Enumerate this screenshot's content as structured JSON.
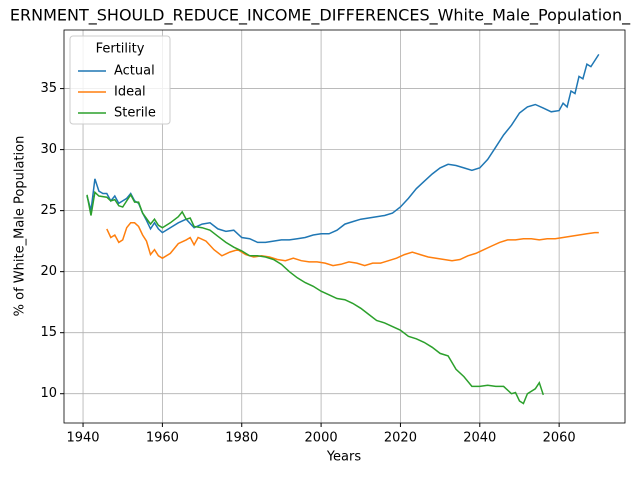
{
  "chart_data": {
    "type": "line",
    "title": "ERNMENT_SHOULD_REDUCE_INCOME_DIFFERENCES_White_Male_Population_",
    "xlabel": "Years",
    "ylabel": "% of White_Male Population",
    "xlim": [
      1935.2,
      2076.6
    ],
    "ylim": [
      7.6,
      39.8
    ],
    "xticks": [
      1940,
      1960,
      1980,
      2000,
      2020,
      2040,
      2060
    ],
    "yticks": [
      10,
      15,
      20,
      25,
      30,
      35
    ],
    "grid": true,
    "legend": "upper left",
    "legend_title": "Fertility",
    "series": [
      {
        "name": "Actual",
        "color": "#1f77b4",
        "x": [
          1941,
          1942,
          1943,
          1944,
          1945,
          1946,
          1947,
          1948,
          1949,
          1950,
          1951,
          1952,
          1953,
          1954,
          1955,
          1956,
          1957,
          1958,
          1959,
          1960,
          1962,
          1964,
          1966,
          1968,
          1970,
          1972,
          1974,
          1976,
          1978,
          1980,
          1982,
          1984,
          1986,
          1988,
          1990,
          1992,
          1994,
          1996,
          1998,
          2000,
          2002,
          2004,
          2006,
          2008,
          2010,
          2012,
          2014,
          2016,
          2018,
          2020,
          2022,
          2024,
          2026,
          2028,
          2030,
          2032,
          2034,
          2036,
          2038,
          2040,
          2042,
          2044,
          2046,
          2048,
          2050,
          2052,
          2054,
          2056,
          2058,
          2060,
          2061,
          2062,
          2063,
          2064,
          2065,
          2066,
          2067,
          2068,
          2070
        ],
        "values": [
          26.2,
          25.0,
          27.6,
          26.6,
          26.4,
          26.4,
          25.8,
          26.2,
          25.6,
          25.8,
          26.0,
          26.4,
          25.8,
          25.6,
          24.8,
          24.2,
          23.5,
          24.0,
          23.5,
          23.2,
          23.6,
          24.0,
          24.3,
          23.6,
          23.9,
          24.0,
          23.5,
          23.3,
          23.4,
          22.8,
          22.7,
          22.4,
          22.4,
          22.5,
          22.6,
          22.6,
          22.7,
          22.8,
          23.0,
          23.1,
          23.1,
          23.4,
          23.9,
          24.1,
          24.3,
          24.4,
          24.5,
          24.6,
          24.8,
          25.3,
          26.0,
          26.8,
          27.4,
          28.0,
          28.5,
          28.8,
          28.7,
          28.5,
          28.3,
          28.5,
          29.2,
          30.2,
          31.2,
          32.0,
          33.0,
          33.5,
          33.7,
          33.4,
          33.1,
          33.2,
          33.8,
          33.5,
          34.8,
          34.6,
          36.0,
          35.8,
          37.0,
          36.8,
          37.8
        ]
      },
      {
        "name": "Ideal",
        "color": "#ff7f0e",
        "x": [
          1946,
          1947,
          1948,
          1949,
          1950,
          1951,
          1952,
          1953,
          1954,
          1955,
          1956,
          1957,
          1958,
          1959,
          1960,
          1962,
          1964,
          1966,
          1967,
          1968,
          1969,
          1971,
          1973,
          1975,
          1977,
          1979,
          1981,
          1983,
          1985,
          1987,
          1989,
          1991,
          1993,
          1995,
          1997,
          1999,
          2001,
          2003,
          2005,
          2007,
          2009,
          2011,
          2013,
          2015,
          2017,
          2019,
          2021,
          2023,
          2025,
          2027,
          2029,
          2031,
          2033,
          2035,
          2037,
          2039,
          2041,
          2043,
          2045,
          2047,
          2049,
          2051,
          2053,
          2055,
          2057,
          2059,
          2061,
          2063,
          2065,
          2067,
          2069,
          2070
        ],
        "values": [
          23.5,
          22.8,
          23.0,
          22.4,
          22.6,
          23.6,
          24.0,
          24.0,
          23.7,
          23.0,
          22.5,
          21.4,
          21.8,
          21.3,
          21.1,
          21.5,
          22.3,
          22.6,
          22.8,
          22.2,
          22.8,
          22.5,
          21.8,
          21.3,
          21.6,
          21.8,
          21.4,
          21.2,
          21.3,
          21.2,
          21.0,
          20.9,
          21.1,
          20.9,
          20.8,
          20.8,
          20.7,
          20.5,
          20.6,
          20.8,
          20.7,
          20.5,
          20.7,
          20.7,
          20.9,
          21.1,
          21.4,
          21.6,
          21.4,
          21.2,
          21.1,
          21.0,
          20.9,
          21.0,
          21.3,
          21.5,
          21.8,
          22.1,
          22.4,
          22.6,
          22.6,
          22.7,
          22.7,
          22.6,
          22.7,
          22.7,
          22.8,
          22.9,
          23.0,
          23.1,
          23.2,
          23.2
        ]
      },
      {
        "name": "Sterile",
        "color": "#2ca02c",
        "x": [
          1941,
          1942,
          1943,
          1944,
          1946,
          1947,
          1948,
          1949,
          1950,
          1952,
          1953,
          1954,
          1955,
          1957,
          1958,
          1959,
          1960,
          1962,
          1964,
          1965,
          1966,
          1967,
          1968,
          1970,
          1972,
          1974,
          1976,
          1978,
          1980,
          1982,
          1984,
          1986,
          1988,
          1990,
          1992,
          1994,
          1996,
          1998,
          2000,
          2002,
          2004,
          2006,
          2008,
          2010,
          2012,
          2014,
          2016,
          2018,
          2020,
          2022,
          2024,
          2026,
          2028,
          2030,
          2032,
          2034,
          2036,
          2038,
          2040,
          2042,
          2044,
          2046,
          2048,
          2049,
          2050,
          2051,
          2052,
          2054,
          2055,
          2056
        ],
        "values": [
          26.3,
          24.6,
          26.5,
          26.2,
          26.1,
          25.8,
          25.9,
          25.4,
          25.3,
          26.3,
          25.7,
          25.7,
          24.8,
          23.9,
          24.3,
          23.8,
          23.6,
          24.0,
          24.5,
          24.9,
          24.3,
          24.4,
          23.7,
          23.6,
          23.4,
          22.9,
          22.4,
          22.0,
          21.7,
          21.3,
          21.3,
          21.2,
          21.0,
          20.6,
          20.0,
          19.5,
          19.1,
          18.8,
          18.4,
          18.1,
          17.8,
          17.7,
          17.4,
          17.0,
          16.5,
          16.0,
          15.8,
          15.5,
          15.2,
          14.7,
          14.5,
          14.2,
          13.8,
          13.3,
          13.1,
          12.0,
          11.4,
          10.6,
          10.6,
          10.7,
          10.6,
          10.6,
          10.0,
          10.1,
          9.4,
          9.2,
          10.0,
          10.4,
          10.9,
          9.9
        ]
      }
    ]
  }
}
